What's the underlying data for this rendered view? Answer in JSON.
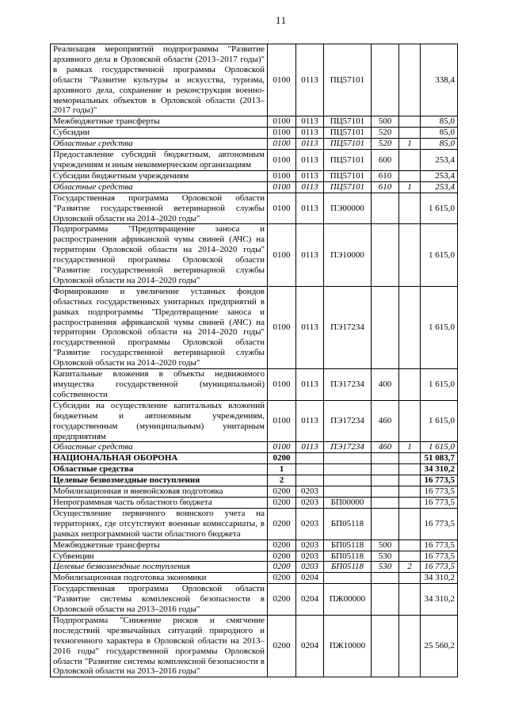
{
  "page_number": "11",
  "table": {
    "column_names": [
      "name",
      "code-section",
      "code-subsection",
      "code-target-article",
      "code-expense-type",
      "code-source",
      "amount"
    ],
    "rows": [
      {
        "style": "normal",
        "cells": [
          "Реализация мероприятий подпрограммы \"Развитие архивного дела в Орловской области (2013–2017 годы)\" в рамках государственной программы Орловской области \"Развитие культуры и искусства, туризма, архивного дела, сохранение и реконструкция военно-мемориальных объектов в Орловской области (2013–2017 годы)\"",
          "0100",
          "0113",
          "ПЦ57101",
          "",
          "",
          "338,4"
        ]
      },
      {
        "style": "normal",
        "cells": [
          "Межбюджетные трансферты",
          "0100",
          "0113",
          "ПЦ57101",
          "500",
          "",
          "85,0"
        ]
      },
      {
        "style": "normal",
        "cells": [
          "Субсидии",
          "0100",
          "0113",
          "ПЦ57101",
          "520",
          "",
          "85,0"
        ]
      },
      {
        "style": "italic",
        "cells": [
          "Областные средства",
          "0100",
          "0113",
          "ПЦ57101",
          "520",
          "1",
          "85,0"
        ]
      },
      {
        "style": "normal",
        "cells": [
          "Предоставление субсидий бюджетным, автономным учреждениям и иным некоммерческим организациям",
          "0100",
          "0113",
          "ПЦ57101",
          "600",
          "",
          "253,4"
        ]
      },
      {
        "style": "normal",
        "cells": [
          "Субсидии бюджетным учреждениям",
          "0100",
          "0113",
          "ПЦ57101",
          "610",
          "",
          "253,4"
        ]
      },
      {
        "style": "italic",
        "cells": [
          "Областные средства",
          "0100",
          "0113",
          "ПЦ57101",
          "610",
          "1",
          "253,4"
        ]
      },
      {
        "style": "normal",
        "cells": [
          "Государственная программа Орловской области \"Развитие государственной ветеринарной службы Орловской области на 2014–2020 годы\"",
          "0100",
          "0113",
          "ПЭ00000",
          "",
          "",
          "1 615,0"
        ]
      },
      {
        "style": "normal",
        "cells": [
          "Подпрограмма \"Предотвращение заноса и распространения африканской чумы свиней (АЧС) на территории Орловской области на 2014–2020 годы\" государственной программы Орловской области \"Развитие государственной ветеринарной службы Орловской области на 2014–2020 годы\"",
          "0100",
          "0113",
          "ПЭ10000",
          "",
          "",
          "1 615,0"
        ]
      },
      {
        "style": "normal",
        "cells": [
          "Формирование и увеличение уставных фондов областных государственных унитарных предприятий в рамках подпрограммы \"Предотвращение заноса и распространения африканской чумы свиней (АЧС) на территории Орловской области на 2014–2020 годы\" государственной программы Орловской области \"Развитие государственной ветеринарной службы Орловской области на 2014–2020 годы\"",
          "0100",
          "0113",
          "ПЭ17234",
          "",
          "",
          "1 615,0"
        ]
      },
      {
        "style": "normal",
        "cells": [
          "Капитальные вложения в объекты недвижимого имущества государственной (муниципальной) собственности",
          "0100",
          "0113",
          "ПЭ17234",
          "400",
          "",
          "1 615,0"
        ]
      },
      {
        "style": "normal",
        "cells": [
          "Субсидии на осуществление капитальных вложений бюджетным и автономным учреждениям, государственным (муниципальным) унитарным предприятиям",
          "0100",
          "0113",
          "ПЭ17234",
          "460",
          "",
          "1 615,0"
        ]
      },
      {
        "style": "italic",
        "cells": [
          "Областные средства",
          "0100",
          "0113",
          "ПЭ17234",
          "460",
          "1",
          "1 615,0"
        ]
      },
      {
        "style": "bold",
        "cells": [
          "НАЦИОНАЛЬНАЯ ОБОРОНА",
          "0200",
          "",
          "",
          "",
          "",
          "51 083,7"
        ]
      },
      {
        "style": "bold",
        "cells": [
          "Областные средства",
          "1",
          "",
          "",
          "",
          "",
          "34 310,2"
        ]
      },
      {
        "style": "bold",
        "cells": [
          "Целевые безвозмездные поступления",
          "2",
          "",
          "",
          "",
          "",
          "16 773,5"
        ]
      },
      {
        "style": "normal",
        "cells": [
          "Мобилизационная и вневойсковая подготовка",
          "0200",
          "0203",
          "",
          "",
          "",
          "16 773,5"
        ]
      },
      {
        "style": "normal",
        "cells": [
          "Непрограммная часть областного бюджета",
          "0200",
          "0203",
          "БП00000",
          "",
          "",
          "16 773,5"
        ]
      },
      {
        "style": "normal",
        "cells": [
          "Осуществление первичного воинского учета на территориях, где отсутствуют военные комиссариаты, в рамках непрограммной части областного бюджета",
          "0200",
          "0203",
          "БП05118",
          "",
          "",
          "16 773,5"
        ]
      },
      {
        "style": "normal",
        "cells": [
          "Межбюджетные трансферты",
          "0200",
          "0203",
          "БП05118",
          "500",
          "",
          "16 773,5"
        ]
      },
      {
        "style": "normal",
        "cells": [
          "Субвенции",
          "0200",
          "0203",
          "БП05118",
          "530",
          "",
          "16 773,5"
        ]
      },
      {
        "style": "italic",
        "cells": [
          "Целевые безвозмездные поступления",
          "0200",
          "0203",
          "БП05118",
          "530",
          "2",
          "16 773,5"
        ]
      },
      {
        "style": "normal",
        "cells": [
          "Мобилизационная подготовка экономики",
          "0200",
          "0204",
          "",
          "",
          "",
          "34 310,2"
        ]
      },
      {
        "style": "normal",
        "cells": [
          "Государственная программа Орловской области \"Развитие системы комплексной безопасности в Орловской области на 2013–2016 годы\"",
          "0200",
          "0204",
          "ПЖ00000",
          "",
          "",
          "34 310,2"
        ]
      },
      {
        "style": "normal",
        "cells": [
          "Подпрограмма \"Снижение рисков и смягчение последствий чрезвычайных ситуаций природного и техногенного характера в Орловской области на 2013–2016 годы\" государственной программы Орловской области \"Развитие системы комплексной безопасности в Орловской области на 2013–2016 годы\"",
          "0200",
          "0204",
          "ПЖ10000",
          "",
          "",
          "25 560,2"
        ]
      }
    ]
  }
}
